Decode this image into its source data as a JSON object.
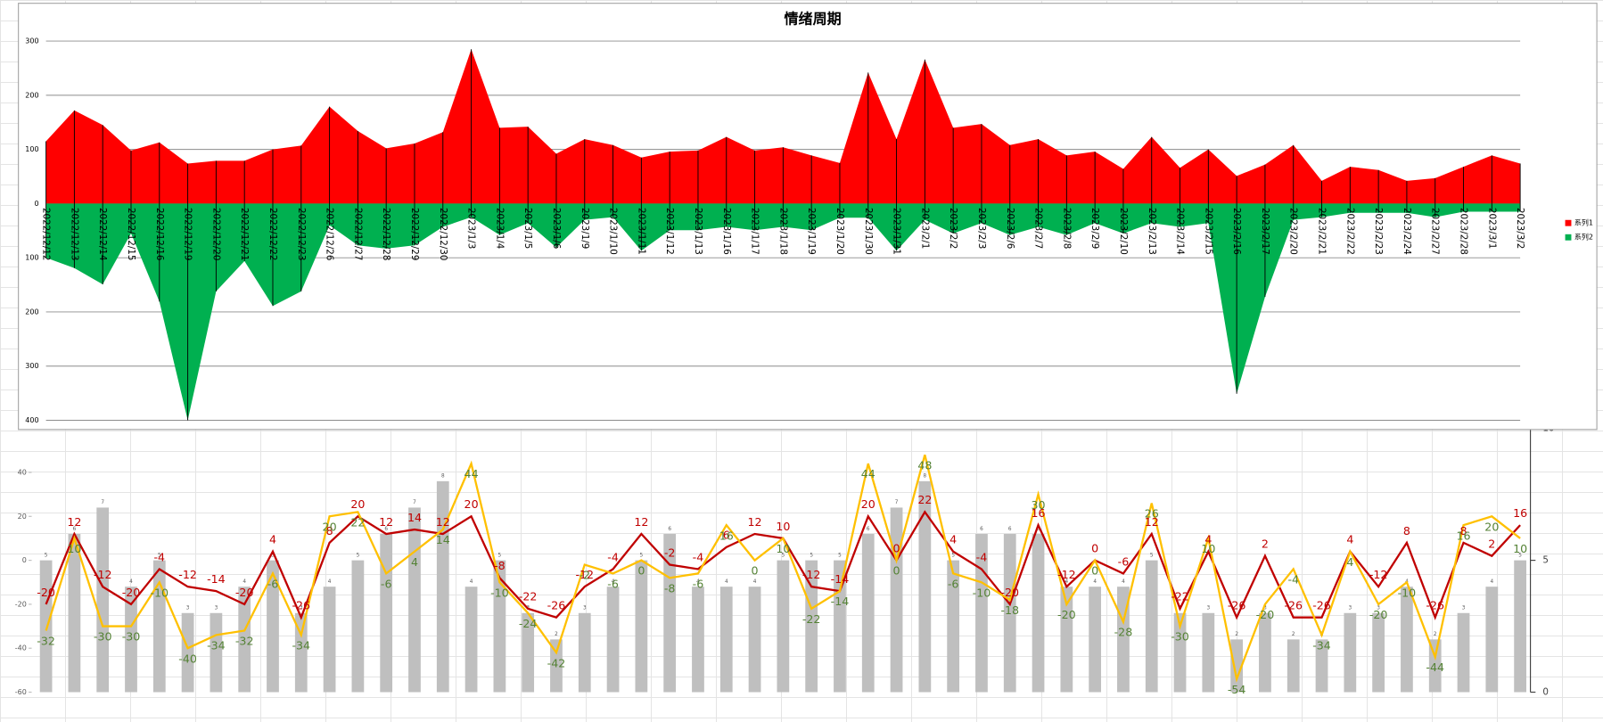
{
  "chart_data": [
    {
      "type": "area",
      "title": "情绪周期",
      "categories": [
        "2022/12/12",
        "2022/12/13",
        "2022/12/14",
        "2022/12/15",
        "2022/12/16",
        "2022/12/19",
        "2022/12/20",
        "2022/12/21",
        "2022/12/22",
        "2022/12/23",
        "2022/12/26",
        "2022/12/27",
        "2022/12/28",
        "2022/12/29",
        "2022/12/30",
        "2023/1/3",
        "2023/1/4",
        "2023/1/5",
        "2023/1/6",
        "2023/1/9",
        "2023/1/10",
        "2023/1/11",
        "2023/1/12",
        "2023/1/13",
        "2023/1/16",
        "2023/1/17",
        "2023/1/18",
        "2023/1/19",
        "2023/1/20",
        "2023/1/30",
        "2023/1/31",
        "2023/2/1",
        "2023/2/2",
        "2023/2/3",
        "2023/2/6",
        "2023/2/7",
        "2023/2/8",
        "2023/2/9",
        "2023/2/10",
        "2023/2/13",
        "2023/2/14",
        "2023/2/15",
        "2023/2/16",
        "2023/2/17",
        "2023/2/20",
        "2023/2/21",
        "2023/2/22",
        "2023/2/23",
        "2023/2/24",
        "2023/2/27",
        "2023/2/28",
        "2023/3/1",
        "2023/3/2"
      ],
      "series": [
        {
          "name": "系列1",
          "color": "#ff0000",
          "values": [
            115,
            172,
            145,
            98,
            113,
            74,
            79,
            79,
            100,
            107,
            179,
            134,
            102,
            111,
            132,
            285,
            140,
            142,
            92,
            119,
            108,
            85,
            96,
            98,
            123,
            98,
            104,
            89,
            75,
            242,
            119,
            266,
            140,
            147,
            108,
            119,
            89,
            96,
            64,
            123,
            66,
            100,
            51,
            72,
            108,
            42,
            68,
            62,
            42,
            47,
            68,
            89,
            74
          ]
        },
        {
          "name": "系列2",
          "color": "#00b050",
          "values": [
            -100,
            -119,
            -149,
            -55,
            -181,
            -400,
            -162,
            -106,
            -189,
            -162,
            -40,
            -77,
            -83,
            -77,
            -43,
            -25,
            -58,
            -36,
            -81,
            -30,
            -25,
            -87,
            -49,
            -49,
            -43,
            -49,
            -43,
            -49,
            -26,
            -26,
            -87,
            -30,
            -55,
            -36,
            -58,
            -43,
            -58,
            -36,
            -55,
            -36,
            -43,
            -36,
            -351,
            -172,
            -30,
            -25,
            -17,
            -17,
            -17,
            -25,
            -15,
            -15,
            -15
          ]
        }
      ],
      "ylim": [
        -400,
        300
      ],
      "yticks": [
        {
          "value": -400,
          "label": "400"
        },
        {
          "value": -300,
          "label": "300"
        },
        {
          "value": -200,
          "label": "200"
        },
        {
          "value": -100,
          "label": "100"
        },
        0,
        100,
        200,
        300
      ],
      "grid": true,
      "legend": "right"
    },
    {
      "type": "combo",
      "series": [
        {
          "type": "bar",
          "axis": "y2",
          "color": "#bfbfbf",
          "label_color": "#595959",
          "values": [
            5,
            6,
            7,
            4,
            5,
            3,
            3,
            4,
            5,
            3,
            4,
            5,
            6,
            7,
            8,
            4,
            5,
            3,
            2,
            3,
            4,
            5,
            6,
            4,
            4,
            4,
            5,
            5,
            5,
            6,
            7,
            8,
            5,
            6,
            6,
            6,
            4,
            4,
            4,
            5,
            3,
            3,
            2,
            3,
            2,
            2,
            3,
            3,
            4,
            2,
            3,
            4,
            5
          ]
        },
        {
          "type": "line",
          "color": "#c00000",
          "label_color": "#c00000",
          "values": [
            -20,
            12,
            -12,
            -20,
            -4,
            -12,
            -14,
            -20,
            4,
            -26,
            8,
            20,
            12,
            14,
            12,
            20,
            -8,
            -22,
            -26,
            -12,
            -4,
            12,
            -2,
            -4,
            6,
            12,
            10,
            -12,
            -14,
            20,
            0,
            22,
            4,
            -4,
            -20,
            16,
            -12,
            0,
            -6,
            12,
            -22,
            4,
            -26,
            2,
            -26,
            -26,
            4,
            -12,
            8,
            -26,
            8,
            2,
            16
          ]
        },
        {
          "type": "line",
          "color": "#ffc000",
          "label_color": "#548235",
          "values": [
            -32,
            10,
            -30,
            -30,
            -10,
            -40,
            -34,
            -32,
            -6,
            -34,
            20,
            22,
            -6,
            4,
            14,
            44,
            -10,
            -24,
            -42,
            -2,
            -6,
            0,
            -8,
            -6,
            16,
            0,
            10,
            -22,
            -14,
            44,
            0,
            48,
            -6,
            -10,
            -18,
            30,
            -20,
            0,
            -28,
            26,
            -30,
            10,
            -54,
            -20,
            -4,
            -34,
            4,
            -20,
            -10,
            -44,
            16,
            20,
            10
          ]
        }
      ],
      "ylim": [
        -60,
        60
      ],
      "yticks": [
        -60,
        -40,
        -20,
        0,
        20,
        40
      ],
      "y2lim": [
        0,
        10
      ],
      "y2ticks": [
        0,
        5,
        10
      ]
    }
  ]
}
